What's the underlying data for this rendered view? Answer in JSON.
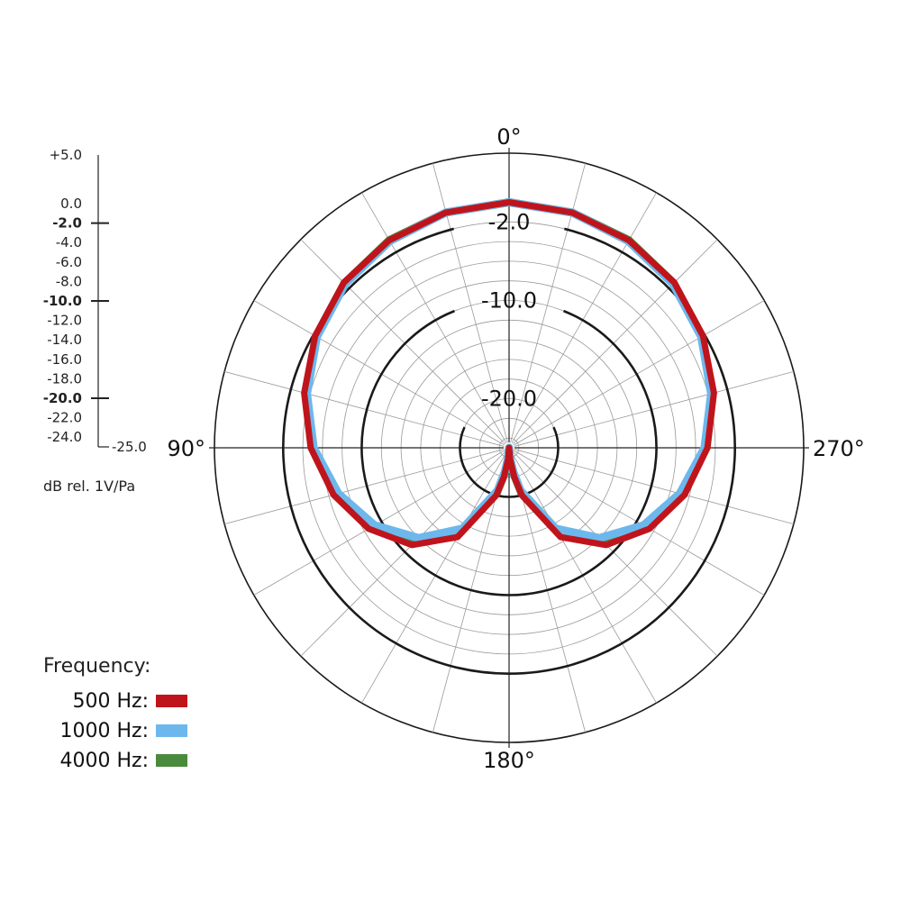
{
  "chart_data": {
    "type": "polar",
    "polar_type": "microphone-pickup-pattern",
    "angle_labels": [
      "0°",
      "90°",
      "180°",
      "270°"
    ],
    "angle_label_positions": [
      "top",
      "left",
      "bottom",
      "right"
    ],
    "spoke_step_deg": 15,
    "radial_axis": {
      "min": -25.0,
      "max": 5.0,
      "unit_label": "dB rel. 1V/Pa",
      "tick_labels": [
        "+5.0",
        "0.0",
        "-2.0",
        "-4.0",
        "-6.0",
        "-8.0",
        "-10.0",
        "-12.0",
        "-14.0",
        "-16.0",
        "-18.0",
        "-20.0",
        "-22.0",
        "-24.0",
        "-25.0"
      ],
      "tick_values": [
        5.0,
        0.0,
        -2.0,
        -4.0,
        -6.0,
        -8.0,
        -10.0,
        -12.0,
        -14.0,
        -16.0,
        -18.0,
        -20.0,
        -22.0,
        -24.0,
        -25.0
      ],
      "bold_ticks": [
        -2.0,
        -10.0,
        -20.0
      ],
      "ring_values": [
        -24,
        -22,
        -20,
        -18,
        -16,
        -14,
        -12,
        -10,
        -8,
        -6,
        -4,
        -2,
        5
      ],
      "highlight_rings": [
        -2.0,
        -10.0,
        -20.0
      ],
      "highlight_ring_labels": [
        "-2.0",
        "-10.0",
        "-20.0"
      ]
    },
    "legend": {
      "title": "Frequency:",
      "entries": [
        {
          "label": "500 Hz:",
          "color": "#c0141c"
        },
        {
          "label": "1000 Hz:",
          "color": "#6cb8ec"
        },
        {
          "label": "4000 Hz:",
          "color": "#4a8a3c"
        }
      ]
    },
    "series": [
      {
        "name": "500 Hz",
        "color": "#c0141c",
        "angles_deg": [
          0,
          15,
          30,
          45,
          60,
          75,
          90,
          105,
          120,
          135,
          150,
          165,
          170,
          175,
          180,
          185,
          190,
          195,
          210,
          225,
          240,
          255,
          270,
          285,
          300,
          315,
          330,
          345,
          360
        ],
        "db": [
          0.0,
          -0.2,
          -0.6,
          -1.2,
          -2.2,
          -3.4,
          -4.8,
          -6.5,
          -8.5,
          -11.0,
          -14.5,
          -20.0,
          -22.0,
          -23.8,
          -25.0,
          -23.8,
          -22.0,
          -20.0,
          -14.5,
          -11.0,
          -8.5,
          -6.5,
          -4.8,
          -3.4,
          -2.2,
          -1.2,
          -0.6,
          -0.2,
          0.0
        ]
      },
      {
        "name": "1000 Hz",
        "color": "#6cb8ec",
        "angles_deg": [
          0,
          15,
          30,
          45,
          60,
          75,
          90,
          105,
          120,
          135,
          150,
          165,
          170,
          175,
          180,
          185,
          190,
          195,
          210,
          225,
          240,
          255,
          270,
          285,
          300,
          315,
          330,
          345,
          360
        ],
        "db": [
          0.0,
          -0.2,
          -0.7,
          -1.4,
          -2.4,
          -3.7,
          -5.1,
          -7.0,
          -9.2,
          -12.0,
          -15.5,
          -20.5,
          -22.5,
          -24.0,
          -25.0,
          -24.0,
          -22.5,
          -20.5,
          -15.5,
          -12.0,
          -9.2,
          -7.0,
          -5.1,
          -3.7,
          -2.4,
          -1.4,
          -0.7,
          -0.2,
          0.0
        ]
      },
      {
        "name": "4000 Hz",
        "color": "#4a8a3c",
        "angles_deg": [
          0,
          15,
          30,
          45,
          60,
          75,
          90,
          105,
          120,
          135,
          150,
          165,
          170,
          175,
          180,
          185,
          190,
          195,
          210,
          225,
          240,
          255,
          270,
          285,
          300,
          315,
          330,
          345,
          360
        ],
        "db": [
          0.0,
          -0.2,
          -0.6,
          -1.3,
          -2.3,
          -3.6,
          -5.0,
          -6.8,
          -9.0,
          -11.8,
          -15.3,
          -20.3,
          -22.3,
          -23.9,
          -25.0,
          -23.9,
          -22.3,
          -20.3,
          -15.3,
          -11.8,
          -9.0,
          -6.8,
          -5.0,
          -3.6,
          -2.3,
          -1.3,
          -0.6,
          -0.2,
          0.0
        ]
      }
    ]
  }
}
